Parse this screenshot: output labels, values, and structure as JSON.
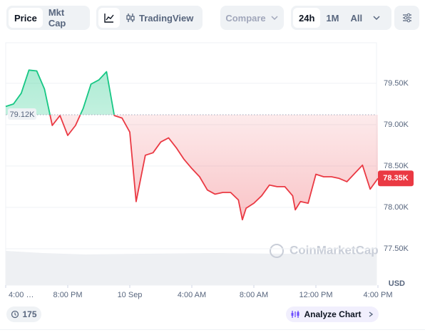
{
  "toolbar": {
    "price": "Price",
    "mkt_cap": "Mkt Cap",
    "tradingview": "TradingView",
    "compare": "Compare",
    "ranges": [
      "24h",
      "1M",
      "All"
    ]
  },
  "chart_data": {
    "type": "line",
    "x": [
      0,
      0.5,
      1,
      1.5,
      2,
      2.5,
      3,
      3.5,
      4,
      4.5,
      5,
      5.5,
      6,
      6.5,
      7,
      7.5,
      8,
      8.41,
      9,
      9.5,
      10,
      10.5,
      11,
      11.5,
      12,
      12.5,
      13,
      13.5,
      14,
      14.5,
      15,
      15.26,
      15.5,
      16,
      16.5,
      17,
      17.5,
      18,
      18.5,
      18.67,
      19,
      19.5,
      20,
      20.5,
      21,
      21.5,
      22,
      22.5,
      23,
      23.5,
      24
    ],
    "series": [
      {
        "values": [
          79.22,
          79.25,
          79.38,
          79.66,
          79.65,
          79.43,
          78.99,
          79.11,
          78.87,
          78.99,
          79.2,
          79.49,
          79.54,
          79.64,
          79.11,
          79.08,
          78.91,
          78.07,
          78.63,
          78.66,
          78.79,
          78.84,
          78.72,
          78.58,
          78.47,
          78.37,
          78.21,
          78.16,
          78.18,
          78.18,
          78.09,
          77.85,
          77.99,
          78.05,
          78.14,
          78.27,
          78.25,
          78.25,
          78.14,
          77.97,
          78.07,
          78.05,
          78.4,
          78.37,
          78.37,
          78.35,
          78.31,
          78.41,
          78.51,
          78.22,
          78.35
        ]
      }
    ],
    "up_color": "#16c784",
    "down_color": "#ea3943",
    "baseline": {
      "value": 79.12,
      "label": "79.12K"
    },
    "current": {
      "value": 78.35,
      "label": "78.35K"
    },
    "xlim": [
      0,
      24
    ],
    "ylim": [
      77.06,
      79.99
    ],
    "xticks": [
      {
        "value": 0,
        "label": "4:00 …"
      },
      {
        "value": 4,
        "label": "8:00 PM"
      },
      {
        "value": 8,
        "label": "10 Sep"
      },
      {
        "value": 12,
        "label": "4:00 AM"
      },
      {
        "value": 16,
        "label": "8:00 AM"
      },
      {
        "value": 20,
        "label": "12:00 PM"
      },
      {
        "value": 24,
        "label": "4:00 PM"
      }
    ],
    "yticks": [
      {
        "value": 77.5,
        "label": "77.50K"
      },
      {
        "value": 78,
        "label": "78.00K"
      },
      {
        "value": 78.5,
        "label": "78.50K"
      },
      {
        "value": 79,
        "label": "79.00K"
      },
      {
        "value": 79.5,
        "label": "79.50K"
      }
    ],
    "y_unit": "USD",
    "grid": true,
    "watermark": "CoinMarketCap"
  },
  "footer": {
    "count": "175",
    "analyze": "Analyze Chart"
  }
}
